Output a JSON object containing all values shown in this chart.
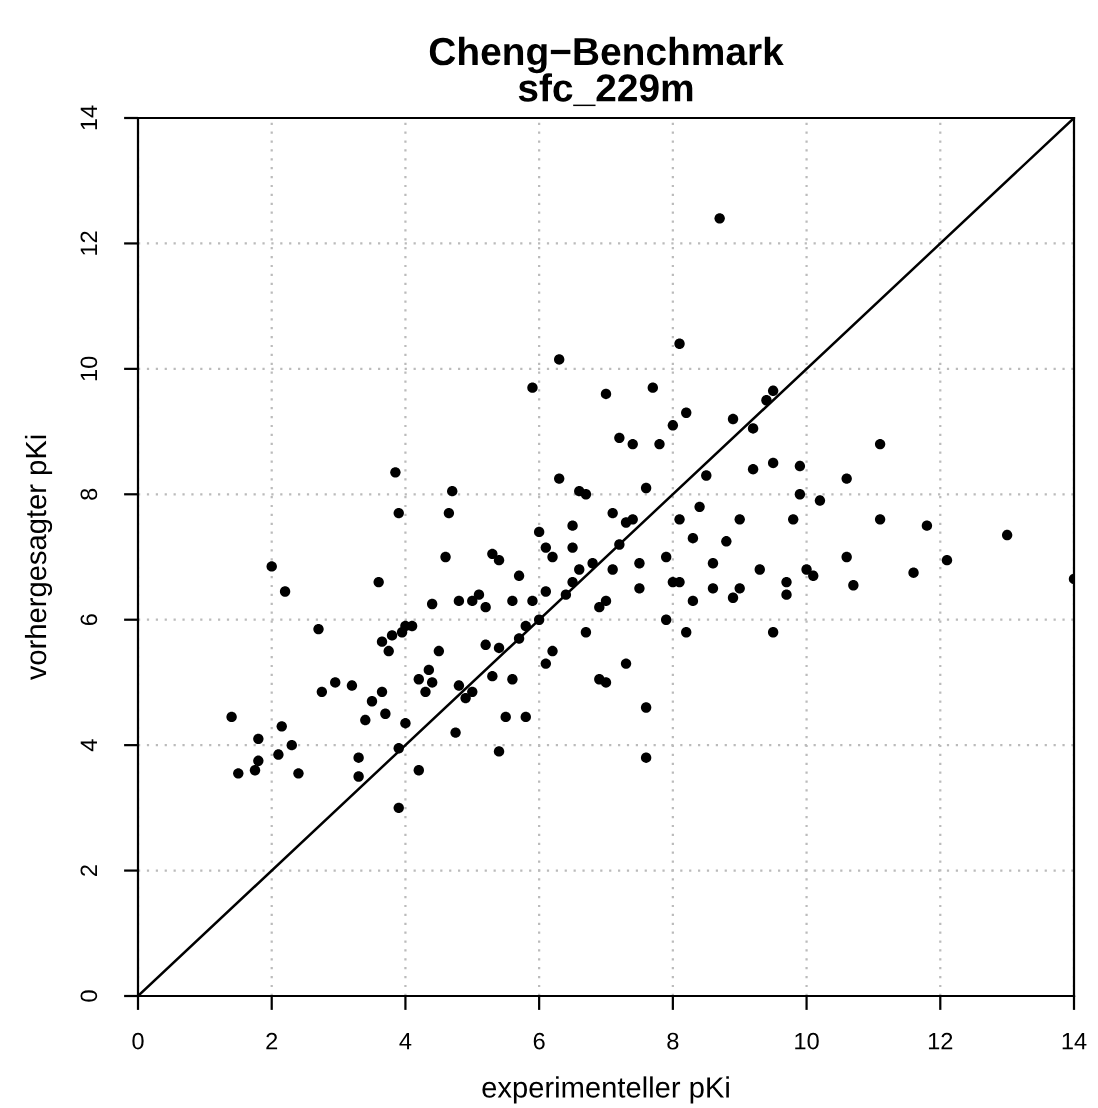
{
  "chart_data": {
    "type": "scatter",
    "title": "Cheng−Benchmark\nsfc_229m",
    "xlabel": "experimenteller pKi",
    "ylabel": "vorhergesagter pKi",
    "xlim": [
      0,
      14
    ],
    "ylim": [
      0,
      14
    ],
    "xticks": [
      0,
      2,
      4,
      6,
      8,
      10,
      12,
      14
    ],
    "yticks": [
      0,
      2,
      4,
      6,
      8,
      10,
      12,
      14
    ],
    "grid": true,
    "series": [
      {
        "marker": "circle",
        "color": "#000000",
        "x": [
          1.4,
          1.5,
          1.75,
          1.8,
          1.8,
          2.0,
          2.1,
          2.15,
          2.2,
          2.3,
          2.4,
          2.7,
          2.75,
          2.95,
          3.2,
          3.3,
          3.3,
          3.4,
          3.5,
          3.6,
          3.65,
          3.65,
          3.7,
          3.75,
          3.8,
          3.85,
          3.9,
          3.9,
          3.9,
          3.95,
          4.0,
          4.0,
          4.2,
          4.2,
          4.3,
          4.35,
          4.4,
          4.5,
          4.6,
          4.65,
          4.7,
          4.75,
          4.8,
          4.8,
          4.9,
          5.0,
          5.0,
          5.1,
          5.2,
          5.2,
          5.3,
          5.3,
          5.4,
          5.4,
          5.4,
          5.5,
          5.6,
          5.6,
          5.7,
          5.8,
          5.8,
          5.9,
          5.9,
          6.0,
          6.0,
          6.1,
          6.1,
          6.1,
          6.2,
          6.2,
          6.3,
          6.3,
          6.4,
          6.5,
          6.5,
          6.6,
          6.6,
          6.7,
          6.7,
          6.8,
          6.9,
          7.0,
          7.0,
          7.0,
          7.1,
          7.2,
          7.2,
          7.3,
          7.3,
          7.4,
          7.5,
          7.5,
          7.6,
          7.6,
          7.7,
          7.6,
          7.8,
          7.9,
          7.9,
          8.0,
          8.1,
          8.2,
          8.1,
          8.2,
          8.3,
          8.4,
          8.5,
          8.6,
          8.7,
          8.8,
          8.9,
          8.9,
          9.0,
          9.2,
          9.2,
          9.3,
          9.4,
          9.5,
          9.5,
          9.7,
          9.8,
          9.9,
          9.9,
          10.2,
          10.6,
          10.7,
          11.1,
          11.1,
          11.6,
          11.8,
          12.1,
          13.0,
          14.0,
          9.0,
          8.6,
          9.5,
          8.1,
          8.3,
          8.0,
          10.1,
          10.0,
          9.7,
          7.1,
          7.4,
          6.9,
          6.5,
          5.7,
          4.1,
          4.4,
          10.6
        ],
        "values": [
          4.45,
          3.55,
          3.6,
          4.1,
          3.75,
          6.85,
          3.85,
          4.3,
          6.45,
          4.0,
          3.55,
          5.85,
          4.85,
          5.0,
          4.95,
          3.5,
          3.8,
          4.4,
          4.7,
          6.6,
          4.85,
          5.65,
          4.5,
          5.5,
          5.75,
          8.35,
          7.7,
          3.0,
          3.95,
          5.8,
          4.35,
          5.9,
          5.05,
          3.6,
          4.85,
          5.2,
          6.25,
          5.5,
          7.0,
          7.7,
          8.05,
          4.2,
          4.95,
          6.3,
          4.75,
          4.85,
          6.3,
          6.4,
          6.2,
          5.6,
          5.1,
          7.05,
          6.95,
          5.55,
          3.9,
          4.45,
          6.3,
          5.05,
          5.7,
          4.45,
          5.9,
          6.3,
          9.7,
          7.4,
          6.0,
          5.3,
          7.15,
          6.45,
          5.5,
          7.0,
          10.15,
          8.25,
          6.4,
          6.6,
          7.5,
          8.05,
          6.8,
          5.8,
          8.0,
          6.9,
          5.05,
          9.6,
          6.3,
          5.0,
          6.8,
          7.2,
          8.9,
          7.55,
          5.3,
          8.8,
          6.9,
          6.5,
          3.8,
          4.6,
          9.7,
          8.1,
          8.8,
          7.0,
          6.0,
          9.1,
          10.4,
          9.3,
          7.6,
          5.8,
          7.3,
          7.8,
          8.3,
          6.9,
          12.4,
          7.25,
          9.2,
          6.35,
          7.6,
          8.4,
          9.05,
          6.8,
          9.5,
          8.5,
          9.65,
          6.6,
          7.6,
          8.0,
          8.45,
          7.9,
          8.25,
          6.55,
          8.8,
          7.6,
          6.75,
          7.5,
          6.95,
          7.35,
          6.65,
          6.5,
          6.5,
          5.8,
          6.6,
          6.3,
          6.6,
          6.7,
          6.8,
          6.4,
          7.7,
          7.6,
          6.2,
          7.15,
          6.7,
          5.9,
          5.0,
          7.0
        ]
      },
      {
        "type": "line",
        "marker": "none",
        "color": "#000000",
        "x": [
          0,
          14
        ],
        "values": [
          0,
          14
        ]
      }
    ]
  }
}
